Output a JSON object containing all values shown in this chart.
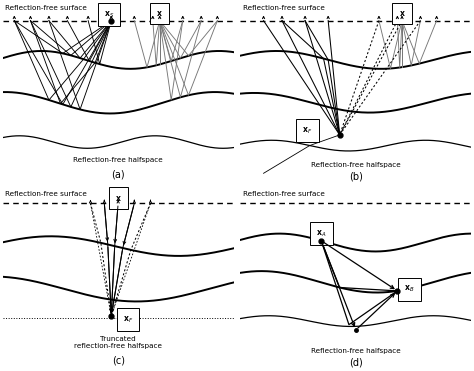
{
  "fig_width": 4.74,
  "fig_height": 3.71,
  "dpi": 100,
  "background": "#ffffff",
  "panel_labels": [
    "(a)",
    "(b)",
    "(c)",
    "(d)"
  ],
  "surface_label": "Reflection-free surface",
  "halfspace_label": "Reflection-free halfspace",
  "truncated_label": "Truncated\nreflection-free halfspace"
}
